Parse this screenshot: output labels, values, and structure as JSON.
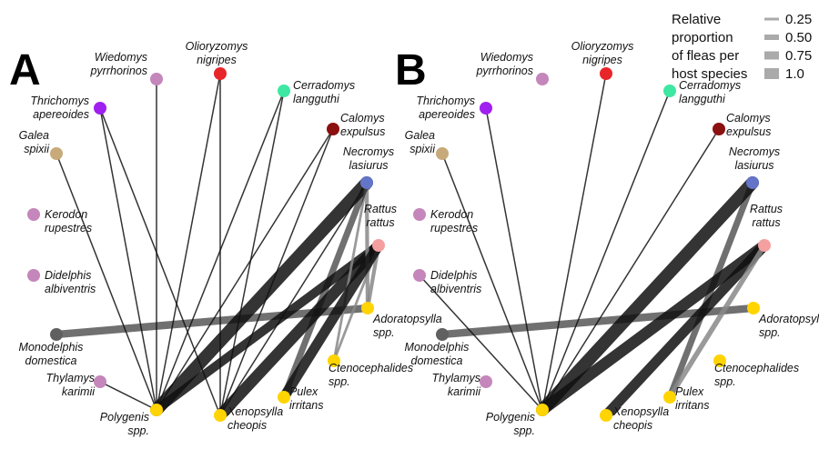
{
  "legend": {
    "title": [
      "Relative",
      "proportion",
      "of fleas per",
      "host species"
    ],
    "items": [
      {
        "value": 0.25,
        "label": "0.25"
      },
      {
        "value": 0.5,
        "label": "0.50"
      },
      {
        "value": 0.75,
        "label": "0.75"
      },
      {
        "value": 1,
        "label": "1.0"
      }
    ]
  },
  "nodes": [
    {
      "label": [
        "Wiedomys",
        "pyrrhorinos"
      ],
      "color": "#c486bb"
    },
    {
      "label": [
        "Olioryzomys",
        "nigripes"
      ],
      "color": "#e8262a"
    },
    {
      "label": [
        "Thrichomys",
        "apereoides"
      ],
      "color": "#a020f0"
    },
    {
      "label": [
        "Cerradomys",
        "langguthi"
      ],
      "color": "#3ee8a2"
    },
    {
      "label": [
        "Calomys",
        "expulsus"
      ],
      "color": "#8b1010"
    },
    {
      "label": [
        "Galea",
        "spixii"
      ],
      "color": "#c8aa7a"
    },
    {
      "label": [
        "Necromys",
        "lasiurus"
      ],
      "color": "#6474c8"
    },
    {
      "label": [
        "Kerodon",
        "rupestres"
      ],
      "color": "#c486bb"
    },
    {
      "label": [
        "Rattus",
        "rattus"
      ],
      "color": "#f4a0a0"
    },
    {
      "label": [
        "Didelphis",
        "albiventris"
      ],
      "color": "#c486bb"
    },
    {
      "label": [
        "Monodelphis",
        "domestica"
      ],
      "color": "#606060"
    },
    {
      "label": [
        "Thylamys",
        "karimii"
      ],
      "color": "#c486bb"
    },
    {
      "label": [
        "Adoratopsylla",
        "spp."
      ],
      "color": "#ffd400"
    },
    {
      "label": [
        "Ctenocephalides",
        "spp."
      ],
      "color": "#ffd400"
    },
    {
      "label": [
        "Pulex",
        "irritans"
      ],
      "color": "#ffd400"
    },
    {
      "label": [
        "Xenopsylla",
        "cheopis"
      ],
      "color": "#ffd400"
    },
    {
      "label": [
        "Polygenis",
        "spp."
      ],
      "color": "#ffd400"
    }
  ],
  "panels": [
    {
      "letter": "A",
      "edges": [
        {
          "source": 0,
          "target": 16,
          "weight": 0.1
        },
        {
          "source": 1,
          "target": 16,
          "weight": 0.1
        },
        {
          "source": 2,
          "target": 16,
          "weight": 0.1
        },
        {
          "source": 3,
          "target": 16,
          "weight": 0.1
        },
        {
          "source": 4,
          "target": 16,
          "weight": 0.1
        },
        {
          "source": 5,
          "target": 16,
          "weight": 0.1
        },
        {
          "source": 6,
          "target": 16,
          "weight": 1
        },
        {
          "source": 8,
          "target": 16,
          "weight": 0.7
        },
        {
          "source": 11,
          "target": 16,
          "weight": 0.1
        },
        {
          "source": 2,
          "target": 15,
          "weight": 0.1
        },
        {
          "source": 1,
          "target": 15,
          "weight": 0.1
        },
        {
          "source": 3,
          "target": 15,
          "weight": 0.1
        },
        {
          "source": 4,
          "target": 15,
          "weight": 0.1
        },
        {
          "source": 6,
          "target": 15,
          "weight": 0.1
        },
        {
          "source": 8,
          "target": 15,
          "weight": 0.9
        },
        {
          "source": 10,
          "target": 12,
          "weight": 0.6
        },
        {
          "source": 6,
          "target": 12,
          "weight": 0.3
        },
        {
          "source": 8,
          "target": 12,
          "weight": 0.3
        },
        {
          "source": 6,
          "target": 13,
          "weight": 0.2
        },
        {
          "source": 8,
          "target": 13,
          "weight": 0.2
        },
        {
          "source": 6,
          "target": 14,
          "weight": 0.5
        },
        {
          "source": 8,
          "target": 14,
          "weight": 0.8
        }
      ]
    },
    {
      "letter": "B",
      "edges": [
        {
          "source": 1,
          "target": 16,
          "weight": 0.1
        },
        {
          "source": 2,
          "target": 16,
          "weight": 0.1
        },
        {
          "source": 3,
          "target": 16,
          "weight": 0.1
        },
        {
          "source": 4,
          "target": 16,
          "weight": 0.1
        },
        {
          "source": 5,
          "target": 16,
          "weight": 0.1
        },
        {
          "source": 6,
          "target": 16,
          "weight": 1
        },
        {
          "source": 8,
          "target": 16,
          "weight": 0.9
        },
        {
          "source": 9,
          "target": 16,
          "weight": 0.1
        },
        {
          "source": 10,
          "target": 12,
          "weight": 0.6
        },
        {
          "source": 8,
          "target": 15,
          "weight": 0.8
        },
        {
          "source": 6,
          "target": 14,
          "weight": 0.5
        },
        {
          "source": 8,
          "target": 14,
          "weight": 0.4
        }
      ]
    }
  ]
}
